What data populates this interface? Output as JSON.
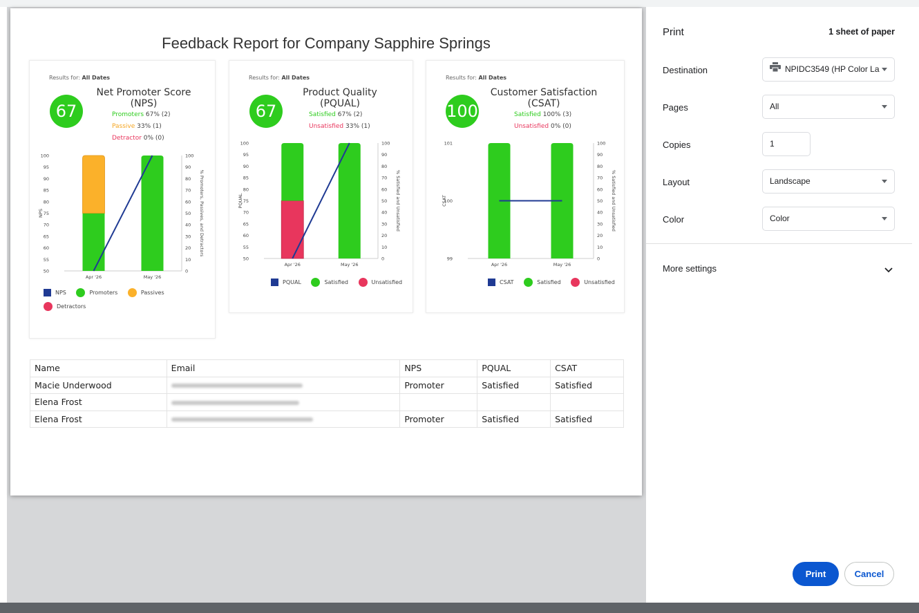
{
  "report": {
    "title": "Feedback Report for Company Sapphire Springs",
    "results_prefix": "Results for:",
    "results_value": "All Dates"
  },
  "cards": {
    "nps": {
      "score": "67",
      "title_line1": "Net Promoter Score",
      "title_line2": "(NPS)",
      "stat1_label": "Promoters",
      "stat1_value": "67% (2)",
      "stat2_label": "Passive",
      "stat2_value": "33% (1)",
      "stat3_label": "Detractor",
      "stat3_value": "0% (0)",
      "legend": [
        "NPS",
        "Promoters",
        "Passives",
        "Detractors"
      ],
      "left_axis_label": "NPS",
      "right_axis_label": "% Promoters, Passives, and Detractors"
    },
    "pqual": {
      "score": "67",
      "title_line1": "Product Quality",
      "title_line2": "(PQUAL)",
      "stat1_label": "Satisfied",
      "stat1_value": "67% (2)",
      "stat2_label": "Unsatisfied",
      "stat2_value": "33% (1)",
      "legend": [
        "PQUAL",
        "Satisfied",
        "Unsatisfied"
      ],
      "left_axis_label": "PQUAL",
      "right_axis_label": "% Satisfied and Unsatisfied"
    },
    "csat": {
      "score": "100",
      "title_line1": "Customer Satisfaction",
      "title_line2": "(CSAT)",
      "stat1_label": "Satisfied",
      "stat1_value": "100% (3)",
      "stat2_label": "Unsatisfied",
      "stat2_value": "0% (0)",
      "legend": [
        "CSAT",
        "Satisfied",
        "Unsatisfied"
      ],
      "left_axis_label": "CSAT",
      "right_axis_label": "% Satisfied and Unsatisfied"
    }
  },
  "chart_data": [
    {
      "type": "bar",
      "title": "Net Promoter Score (NPS)",
      "categories": [
        "Apr '26",
        "May '26"
      ],
      "ylabel": "NPS",
      "y2label": "% Promoters, Passives, and Detractors",
      "ylim": [
        50,
        100
      ],
      "y2lim": [
        0,
        100
      ],
      "yticks": [
        50,
        55,
        60,
        65,
        70,
        75,
        80,
        85,
        90,
        95,
        100
      ],
      "y2ticks": [
        0,
        10,
        20,
        30,
        40,
        50,
        60,
        70,
        80,
        90,
        100
      ],
      "series": [
        {
          "name": "Promoters",
          "kind": "stacked-bar",
          "color": "#2ecc1e",
          "values": [
            50,
            100
          ]
        },
        {
          "name": "Passives",
          "kind": "stacked-bar",
          "color": "#fbb12a",
          "values": [
            50,
            0
          ]
        },
        {
          "name": "Detractors",
          "kind": "stacked-bar",
          "color": "#e8365d",
          "values": [
            0,
            0
          ]
        },
        {
          "name": "NPS",
          "kind": "line",
          "color": "#1f3a93",
          "values": [
            50,
            100
          ]
        }
      ]
    },
    {
      "type": "bar",
      "title": "Product Quality (PQUAL)",
      "categories": [
        "Apr '26",
        "May '26"
      ],
      "ylabel": "PQUAL",
      "y2label": "% Satisfied and Unsatisfied",
      "ylim": [
        50,
        100
      ],
      "y2lim": [
        0,
        100
      ],
      "yticks": [
        50,
        55,
        60,
        65,
        70,
        75,
        80,
        85,
        90,
        95,
        100
      ],
      "y2ticks": [
        0,
        10,
        20,
        30,
        40,
        50,
        60,
        70,
        80,
        90,
        100
      ],
      "series": [
        {
          "name": "Unsatisfied",
          "kind": "stacked-bar",
          "color": "#e8365d",
          "values": [
            50,
            0
          ]
        },
        {
          "name": "Satisfied",
          "kind": "stacked-bar",
          "color": "#2ecc1e",
          "values": [
            50,
            100
          ]
        },
        {
          "name": "PQUAL",
          "kind": "line",
          "color": "#1f3a93",
          "values": [
            50,
            100
          ]
        }
      ]
    },
    {
      "type": "bar",
      "title": "Customer Satisfaction (CSAT)",
      "categories": [
        "Apr '26",
        "May '26"
      ],
      "ylabel": "CSAT",
      "y2label": "% Satisfied and Unsatisfied",
      "ylim": [
        99,
        101
      ],
      "y2lim": [
        0,
        100
      ],
      "yticks": [
        99,
        100,
        101
      ],
      "y2ticks": [
        0,
        10,
        20,
        30,
        40,
        50,
        60,
        70,
        80,
        90,
        100
      ],
      "series": [
        {
          "name": "Satisfied",
          "kind": "stacked-bar",
          "color": "#2ecc1e",
          "values": [
            100,
            100
          ]
        },
        {
          "name": "Unsatisfied",
          "kind": "stacked-bar",
          "color": "#e8365d",
          "values": [
            0,
            0
          ]
        },
        {
          "name": "CSAT",
          "kind": "line",
          "color": "#1f3a93",
          "values": [
            100,
            100
          ]
        }
      ]
    }
  ],
  "table": {
    "headers": [
      "Name",
      "Email",
      "NPS",
      "PQUAL",
      "CSAT"
    ],
    "rows": [
      {
        "name": "Macie Underwood",
        "nps": "Promoter",
        "pqual": "Satisfied",
        "csat": "Satisfied"
      },
      {
        "name": "Elena Frost",
        "nps": "",
        "pqual": "",
        "csat": ""
      },
      {
        "name": "Elena Frost",
        "nps": "Promoter",
        "pqual": "Satisfied",
        "csat": "Satisfied"
      }
    ]
  },
  "print_panel": {
    "title": "Print",
    "sheet_count": "1 sheet of paper",
    "destination_label": "Destination",
    "destination_value": "NPIDC3549 (HP Color La",
    "pages_label": "Pages",
    "pages_value": "All",
    "copies_label": "Copies",
    "copies_value": "1",
    "layout_label": "Layout",
    "layout_value": "Landscape",
    "color_label": "Color",
    "color_value": "Color",
    "more_settings": "More settings",
    "print_button": "Print",
    "cancel_button": "Cancel"
  }
}
